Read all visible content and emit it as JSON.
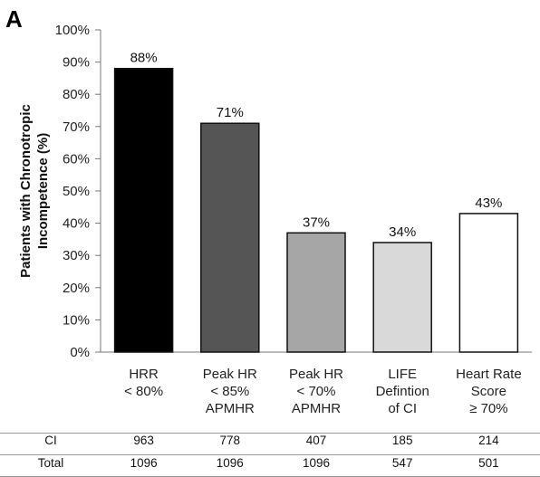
{
  "panel_label": "A",
  "chart_data": {
    "type": "bar",
    "ylabel_lines": [
      "Patients with Chronotropic",
      "Incompetence (%)"
    ],
    "ylim": [
      0,
      100
    ],
    "yticks": [
      "0%",
      "10%",
      "20%",
      "30%",
      "40%",
      "50%",
      "60%",
      "70%",
      "80%",
      "90%",
      "100%"
    ],
    "categories": [
      [
        "HRR",
        "< 80%"
      ],
      [
        "Peak HR",
        "< 85%",
        "APMHR"
      ],
      [
        "Peak HR",
        "< 70%",
        "APMHR"
      ],
      [
        "LIFE",
        "Defintion",
        "of CI"
      ],
      [
        "Heart Rate",
        "Score",
        "≥ 70%"
      ]
    ],
    "values": [
      88,
      71,
      37,
      34,
      43
    ],
    "value_labels": [
      "88%",
      "71%",
      "37%",
      "34%",
      "43%"
    ],
    "bar_colors": [
      "#000000",
      "#555555",
      "#a6a6a6",
      "#d9d9d9",
      "#ffffff"
    ]
  },
  "table": {
    "rows": [
      {
        "label": "CI",
        "values": [
          "963",
          "778",
          "407",
          "185",
          "214"
        ]
      },
      {
        "label": "Total",
        "values": [
          "1096",
          "1096",
          "1096",
          "547",
          "501"
        ]
      }
    ]
  }
}
